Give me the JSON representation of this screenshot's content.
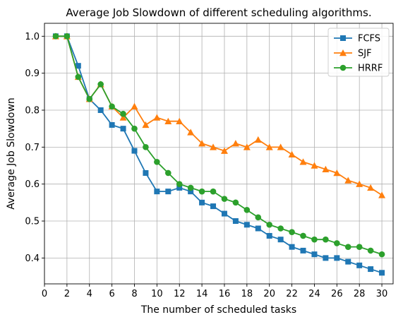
{
  "chart_data": {
    "type": "line",
    "title": "Average Job Slowdown of different scheduling algorithms.",
    "xlabel": "The number of scheduled tasks",
    "ylabel": "Average Job Slowdown",
    "xlim": [
      0,
      31
    ],
    "ylim": [
      0.33,
      1.035
    ],
    "xticks": [
      0,
      2,
      4,
      6,
      8,
      10,
      12,
      14,
      16,
      18,
      20,
      22,
      24,
      26,
      28,
      30
    ],
    "yticks": [
      0.4,
      0.5,
      0.6,
      0.7,
      0.8,
      0.9,
      1.0
    ],
    "ytick_labels": [
      "0.4",
      "0.5",
      "0.6",
      "0.7",
      "0.8",
      "0.9",
      "1.0"
    ],
    "grid": true,
    "legend_position": "top-right",
    "x": [
      1,
      2,
      3,
      4,
      5,
      6,
      7,
      8,
      9,
      10,
      11,
      12,
      13,
      14,
      15,
      16,
      17,
      18,
      19,
      20,
      21,
      22,
      23,
      24,
      25,
      26,
      27,
      28,
      29,
      30
    ],
    "series": [
      {
        "name": "FCFS",
        "color": "#1f77b4",
        "marker": "square",
        "values": [
          1.0,
          1.0,
          0.92,
          0.83,
          0.8,
          0.76,
          0.75,
          0.69,
          0.63,
          0.58,
          0.58,
          0.59,
          0.58,
          0.55,
          0.54,
          0.52,
          0.5,
          0.49,
          0.48,
          0.46,
          0.45,
          0.43,
          0.42,
          0.41,
          0.4,
          0.4,
          0.39,
          0.38,
          0.37,
          0.36
        ]
      },
      {
        "name": "SJF",
        "color": "#ff7f0e",
        "marker": "triangle",
        "values": [
          1.0,
          1.0,
          0.89,
          0.83,
          0.87,
          0.81,
          0.78,
          0.81,
          0.76,
          0.78,
          0.77,
          0.77,
          0.74,
          0.71,
          0.7,
          0.69,
          0.71,
          0.7,
          0.72,
          0.7,
          0.7,
          0.68,
          0.66,
          0.65,
          0.64,
          0.63,
          0.61,
          0.6,
          0.59,
          0.57
        ]
      },
      {
        "name": "HRRF",
        "color": "#2ca02c",
        "marker": "circle",
        "values": [
          1.0,
          1.0,
          0.89,
          0.83,
          0.87,
          0.81,
          0.79,
          0.75,
          0.7,
          0.66,
          0.63,
          0.6,
          0.59,
          0.58,
          0.58,
          0.56,
          0.55,
          0.53,
          0.51,
          0.49,
          0.48,
          0.47,
          0.46,
          0.45,
          0.45,
          0.44,
          0.43,
          0.43,
          0.42,
          0.41
        ]
      }
    ]
  }
}
